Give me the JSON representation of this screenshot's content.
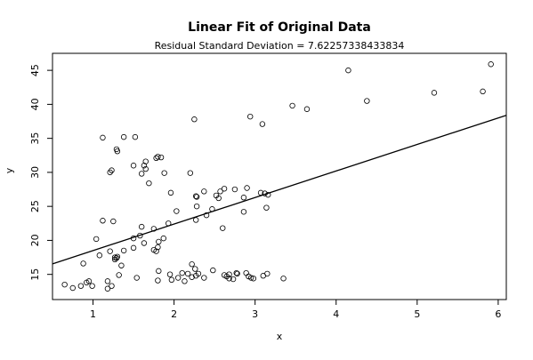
{
  "chart_data": {
    "type": "scatter",
    "title": "Linear Fit of Original Data",
    "subtitle": "Residual Standard Deviation =  7.62257338433834",
    "xlabel": "x",
    "ylabel": "y",
    "xlim": [
      0.5,
      6.1
    ],
    "ylim": [
      11.3,
      47.5
    ],
    "xticks": [
      "1",
      "2",
      "3",
      "4",
      "5",
      "6"
    ],
    "yticks": [
      "15",
      "20",
      "25",
      "30",
      "35",
      "40",
      "45"
    ],
    "grid": false,
    "legend": "none",
    "fit_line": {
      "intercept": 14.6,
      "slope": 3.9
    },
    "points": [
      [
        0.65,
        13.5
      ],
      [
        0.75,
        13.0
      ],
      [
        0.85,
        13.3
      ],
      [
        0.88,
        16.6
      ],
      [
        0.92,
        13.8
      ],
      [
        0.95,
        14.0
      ],
      [
        0.99,
        13.3
      ],
      [
        1.04,
        20.2
      ],
      [
        1.08,
        17.8
      ],
      [
        1.12,
        22.9
      ],
      [
        1.12,
        35.1
      ],
      [
        1.18,
        14.0
      ],
      [
        1.18,
        12.9
      ],
      [
        1.21,
        18.4
      ],
      [
        1.21,
        30.0
      ],
      [
        1.23,
        30.3
      ],
      [
        1.23,
        13.3
      ],
      [
        1.25,
        22.8
      ],
      [
        1.27,
        17.5
      ],
      [
        1.27,
        17.2
      ],
      [
        1.29,
        17.4
      ],
      [
        1.29,
        33.4
      ],
      [
        1.3,
        33.1
      ],
      [
        1.3,
        17.6
      ],
      [
        1.32,
        14.9
      ],
      [
        1.35,
        16.3
      ],
      [
        1.38,
        35.2
      ],
      [
        1.38,
        18.5
      ],
      [
        1.5,
        20.3
      ],
      [
        1.5,
        31.0
      ],
      [
        1.5,
        18.9
      ],
      [
        1.52,
        35.2
      ],
      [
        1.54,
        14.5
      ],
      [
        1.58,
        20.7
      ],
      [
        1.6,
        22.0
      ],
      [
        1.6,
        29.8
      ],
      [
        1.63,
        31.0
      ],
      [
        1.63,
        19.6
      ],
      [
        1.65,
        30.5
      ],
      [
        1.65,
        31.6
      ],
      [
        1.69,
        28.4
      ],
      [
        1.75,
        21.7
      ],
      [
        1.75,
        18.6
      ],
      [
        1.78,
        32.1
      ],
      [
        1.78,
        18.4
      ],
      [
        1.8,
        32.3
      ],
      [
        1.8,
        19.0
      ],
      [
        1.8,
        14.1
      ],
      [
        1.81,
        19.8
      ],
      [
        1.81,
        15.5
      ],
      [
        1.84,
        32.2
      ],
      [
        1.87,
        20.3
      ],
      [
        1.88,
        29.9
      ],
      [
        1.93,
        22.5
      ],
      [
        1.95,
        15.0
      ],
      [
        1.96,
        27.0
      ],
      [
        1.97,
        14.2
      ],
      [
        2.03,
        24.3
      ],
      [
        2.05,
        14.5
      ],
      [
        2.1,
        15.2
      ],
      [
        2.13,
        14.0
      ],
      [
        2.17,
        15.1
      ],
      [
        2.2,
        29.9
      ],
      [
        2.22,
        16.5
      ],
      [
        2.22,
        14.6
      ],
      [
        2.25,
        37.8
      ],
      [
        2.26,
        15.8
      ],
      [
        2.27,
        14.8
      ],
      [
        2.27,
        23.0
      ],
      [
        2.27,
        26.5
      ],
      [
        2.28,
        26.4
      ],
      [
        2.28,
        25.0
      ],
      [
        2.3,
        15.1
      ],
      [
        2.37,
        27.2
      ],
      [
        2.37,
        14.5
      ],
      [
        2.4,
        23.7
      ],
      [
        2.47,
        24.6
      ],
      [
        2.48,
        15.6
      ],
      [
        2.52,
        26.6
      ],
      [
        2.55,
        26.2
      ],
      [
        2.57,
        27.2
      ],
      [
        2.6,
        21.8
      ],
      [
        2.62,
        27.6
      ],
      [
        2.62,
        14.9
      ],
      [
        2.65,
        14.7
      ],
      [
        2.68,
        15.0
      ],
      [
        2.68,
        14.4
      ],
      [
        2.73,
        14.3
      ],
      [
        2.75,
        27.5
      ],
      [
        2.77,
        15.2
      ],
      [
        2.78,
        15.1
      ],
      [
        2.86,
        24.2
      ],
      [
        2.86,
        26.3
      ],
      [
        2.89,
        15.2
      ],
      [
        2.9,
        27.7
      ],
      [
        2.92,
        14.7
      ],
      [
        2.94,
        38.2
      ],
      [
        2.95,
        14.5
      ],
      [
        2.98,
        14.4
      ],
      [
        3.07,
        27.0
      ],
      [
        3.09,
        37.1
      ],
      [
        3.1,
        14.8
      ],
      [
        3.12,
        26.9
      ],
      [
        3.14,
        24.8
      ],
      [
        3.15,
        15.1
      ],
      [
        3.16,
        26.7
      ],
      [
        3.35,
        14.4
      ],
      [
        3.46,
        39.8
      ],
      [
        3.64,
        39.3
      ],
      [
        4.15,
        45.0
      ],
      [
        4.38,
        40.5
      ],
      [
        5.21,
        41.7
      ],
      [
        5.81,
        41.9
      ],
      [
        5.91,
        45.9
      ]
    ]
  }
}
